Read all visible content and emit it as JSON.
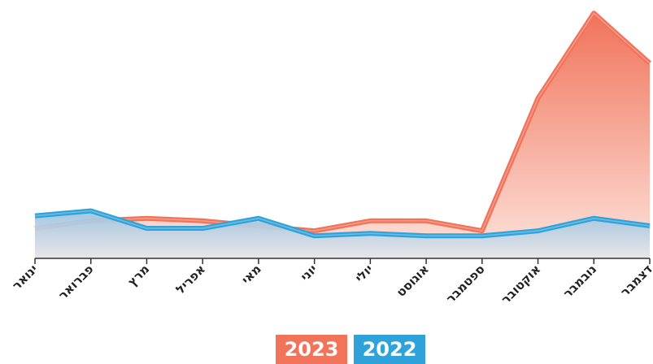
{
  "chart_data": {
    "type": "area",
    "categories": [
      "ינואר",
      "פברואר",
      "מרץ",
      "אפריל",
      "מאי",
      "יוני",
      "יולי",
      "אוגוסט",
      "ספטמבר",
      "אוקטובר",
      "נובמבר",
      "דצמבר"
    ],
    "series": [
      {
        "name": "2023",
        "color": "#f0735a",
        "values": [
          12,
          15,
          16,
          15,
          13,
          11,
          15,
          15,
          11,
          64,
          98,
          78
        ]
      },
      {
        "name": "2022",
        "color": "#2fa3d9",
        "values": [
          17,
          19,
          12,
          12,
          16,
          9,
          10,
          9,
          9,
          11,
          16,
          13
        ]
      }
    ],
    "ylim": [
      0,
      100
    ]
  }
}
